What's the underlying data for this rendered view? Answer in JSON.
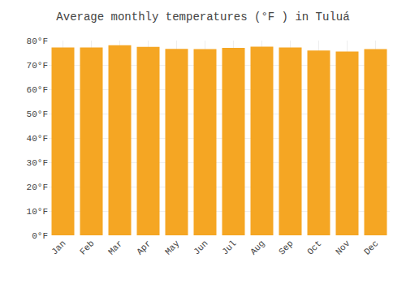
{
  "chart_data": {
    "type": "bar",
    "title": "Average monthly temperatures (°F ) in Tuluá",
    "categories": [
      "Jan",
      "Feb",
      "Mar",
      "Apr",
      "May",
      "Jun",
      "Jul",
      "Aug",
      "Sep",
      "Oct",
      "Nov",
      "Dec"
    ],
    "values": [
      77.2,
      77.2,
      78.1,
      77.4,
      76.6,
      76.5,
      77.0,
      77.5,
      77.2,
      75.9,
      75.5,
      76.5
    ],
    "color": "#F5A623",
    "ylim": [
      0,
      80
    ],
    "yticks": [
      {
        "value": 0,
        "label": "0°F"
      },
      {
        "value": 10,
        "label": "10°F"
      },
      {
        "value": 20,
        "label": "20°F"
      },
      {
        "value": 30,
        "label": "30°F"
      },
      {
        "value": 40,
        "label": "40°F"
      },
      {
        "value": 50,
        "label": "50°F"
      },
      {
        "value": 60,
        "label": "60°F"
      },
      {
        "value": 70,
        "label": "70°F"
      },
      {
        "value": 80,
        "label": "80°F"
      }
    ],
    "grid": true
  }
}
